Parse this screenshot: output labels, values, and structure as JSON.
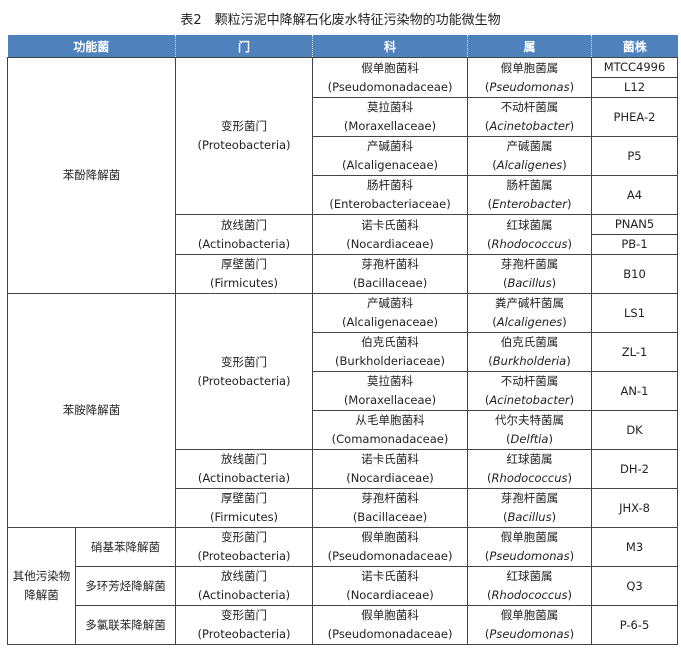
{
  "caption": "表2　颗粒污泥中降解石化废水特征污染物的功能微生物",
  "header": {
    "function": "功能菌",
    "phylum": "门",
    "family": "科",
    "genus": "属",
    "strain": "菌株",
    "color": "#4f81bd"
  },
  "groups": [
    {
      "name": "苯酚降解菌",
      "subgroups": [
        {
          "name": null,
          "phyla": [
            {
              "cn": "变形菌门",
              "en": "(Proteobacteria)",
              "families": [
                {
                  "cn": "假单胞菌科",
                  "en": "(Pseudomonadaceae)",
                  "genus_cn": "假单胞菌属",
                  "genus_en": "Pseudomonas",
                  "strains": [
                    "MTCC4996",
                    "L12"
                  ]
                },
                {
                  "cn": "莫拉菌科",
                  "en": "(Moraxellaceae)",
                  "genus_cn": "不动杆菌属",
                  "genus_en": "Acinetobacter",
                  "strains": [
                    "PHEA-2"
                  ]
                },
                {
                  "cn": "产碱菌科",
                  "en": "(Alcaligenaceae)",
                  "genus_cn": "产碱菌属",
                  "genus_en": "Alcaligenes",
                  "strains": [
                    "P5"
                  ]
                },
                {
                  "cn": "肠杆菌科",
                  "en": "(Enterobacteriaceae)",
                  "genus_cn": "肠杆菌属",
                  "genus_en": "Enterobacter",
                  "strains": [
                    "A4"
                  ]
                }
              ]
            },
            {
              "cn": "放线菌门",
              "en": "(Actinobacteria)",
              "families": [
                {
                  "cn": "诺卡氏菌科",
                  "en": "(Nocardiaceae)",
                  "genus_cn": "红球菌属",
                  "genus_en": "Rhodococcus",
                  "strains": [
                    "PNAN5",
                    "PB-1"
                  ]
                }
              ]
            },
            {
              "cn": "厚壁菌门",
              "en": "(Firmicutes)",
              "families": [
                {
                  "cn": "芽孢杆菌科",
                  "en": "(Bacillaceae)",
                  "genus_cn": "芽孢杆菌属",
                  "genus_en": "Bacillus",
                  "strains": [
                    "B10"
                  ]
                }
              ]
            }
          ]
        }
      ]
    },
    {
      "name": "苯胺降解菌",
      "subgroups": [
        {
          "name": null,
          "phyla": [
            {
              "cn": "变形菌门",
              "en": "(Proteobacteria)",
              "families": [
                {
                  "cn": "产碱菌科",
                  "en": "(Alcaligenaceae)",
                  "genus_cn": "粪产碱杆菌属",
                  "genus_en": "Alcaligenes",
                  "strains": [
                    "LS1"
                  ]
                },
                {
                  "cn": "伯克氏菌科",
                  "en": "(Burkholderiaceae)",
                  "genus_cn": "伯克氏菌属",
                  "genus_en": "Burkholderia",
                  "strains": [
                    "ZL-1"
                  ]
                },
                {
                  "cn": "莫拉菌科",
                  "en": "(Moraxellaceae)",
                  "genus_cn": "不动杆菌属",
                  "genus_en": "Acinetobacter",
                  "strains": [
                    "AN-1"
                  ]
                },
                {
                  "cn": "从毛单胞菌科",
                  "en": "(Comamonadaceae)",
                  "genus_cn": "代尔夫特菌属",
                  "genus_en": "Delftia",
                  "strains": [
                    "DK"
                  ]
                }
              ]
            },
            {
              "cn": "放线菌门",
              "en": "(Actinobacteria)",
              "families": [
                {
                  "cn": "诺卡氏菌科",
                  "en": "(Nocardiaceae)",
                  "genus_cn": "红球菌属",
                  "genus_en": "Rhodococcus",
                  "strains": [
                    "DH-2"
                  ]
                }
              ]
            },
            {
              "cn": "厚壁菌门",
              "en": "(Firmicutes)",
              "families": [
                {
                  "cn": "芽孢杆菌科",
                  "en": "(Bacillaceae)",
                  "genus_cn": "芽孢杆菌属",
                  "genus_en": "Bacillus",
                  "strains": [
                    "JHX-8"
                  ]
                }
              ]
            }
          ]
        }
      ]
    },
    {
      "name": "其他污染物降解菌",
      "subgroups": [
        {
          "name": "硝基苯降解菌",
          "phyla": [
            {
              "cn": "变形菌门",
              "en": "(Proteobacteria)",
              "families": [
                {
                  "cn": "假单胞菌科",
                  "en": "(Pseudomonadaceae)",
                  "genus_cn": "假单胞菌属",
                  "genus_en": "Pseudomonas",
                  "strains": [
                    "M3"
                  ]
                }
              ]
            }
          ]
        },
        {
          "name": "多环芳烃降解菌",
          "phyla": [
            {
              "cn": "放线菌门",
              "en": "(Actinobacteria)",
              "families": [
                {
                  "cn": "诺卡氏菌科",
                  "en": "(Nocardiaceae)",
                  "genus_cn": "红球菌属",
                  "genus_en": "Rhodococcus",
                  "strains": [
                    "Q3"
                  ]
                }
              ]
            }
          ]
        },
        {
          "name": "多氯联苯降解菌",
          "phyla": [
            {
              "cn": "变形菌门",
              "en": "(Proteobacteria)",
              "families": [
                {
                  "cn": "假单胞菌科",
                  "en": "(Pseudomonadaceae)",
                  "genus_cn": "假单胞菌属",
                  "genus_en": "Pseudomonas",
                  "strains": [
                    "P-6-5"
                  ]
                }
              ]
            }
          ]
        }
      ]
    }
  ]
}
